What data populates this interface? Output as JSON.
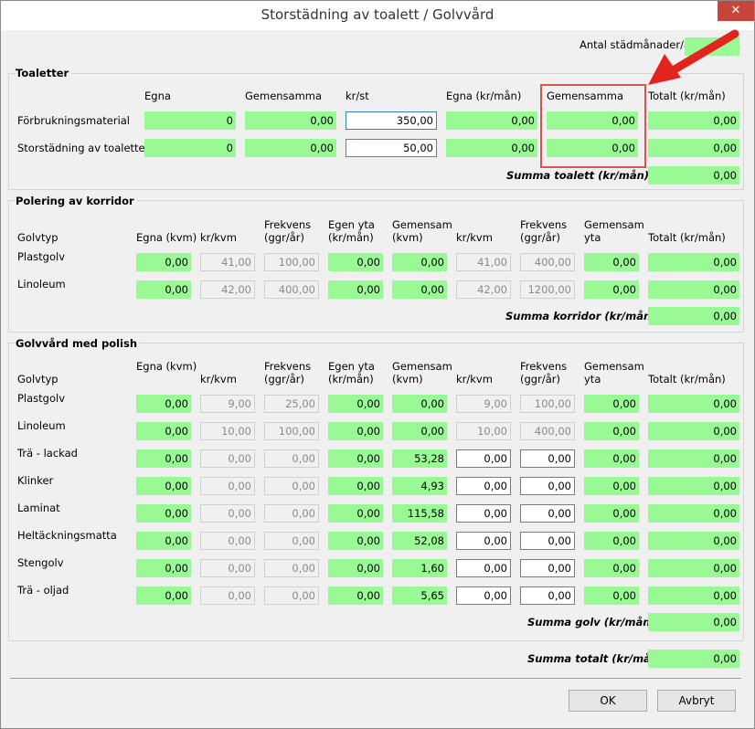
{
  "window": {
    "title": "Storstädning av toalett / Golvvård",
    "close_glyph": "✕"
  },
  "months": {
    "label": "Antal städmånader/år",
    "value": ""
  },
  "toaletter": {
    "title": "Toaletter",
    "headers": [
      "Egna",
      "Gemensamma",
      "kr/st",
      "Egna (kr/mån)",
      "Gemensamma",
      "Totalt (kr/mån)"
    ],
    "rows": [
      {
        "label": "Förbrukningsmaterial",
        "egna": "0",
        "gemensamma": "0,00",
        "krst": "350,00",
        "egna_krman": "0,00",
        "gem_krman": "0,00",
        "totalt": "0,00"
      },
      {
        "label": "Storstädning av toaletter",
        "egna": "0",
        "gemensamma": "0,00",
        "krst": "50,00",
        "egna_krman": "0,00",
        "gem_krman": "0,00",
        "totalt": "0,00"
      }
    ],
    "sum_label": "Summa toalett (kr/mån)",
    "sum_value": "0,00"
  },
  "korridor": {
    "title": "Polering av korridor",
    "headers": {
      "golvtyp": "Golvtyp",
      "egna": "Egna (kvm)",
      "krkvm1": "kr/kvm",
      "frek1": [
        "Frekvens",
        "(ggr/år)"
      ],
      "egenyta": [
        "Egen yta",
        "(kr/mån)"
      ],
      "gemsam": [
        "Gemensam",
        "(kvm)"
      ],
      "krkvm2": "kr/kvm",
      "frek2": [
        "Frekvens",
        "(ggr/år)"
      ],
      "gemyta": [
        "Gemensam",
        "yta"
      ],
      "totalt": "Totalt (kr/mån)"
    },
    "rows": [
      {
        "label": "Plastgolv",
        "v": [
          "0,00",
          "41,00",
          "100,00",
          "0,00",
          "0,00",
          "41,00",
          "400,00",
          "0,00",
          "0,00"
        ]
      },
      {
        "label": "Linoleum",
        "v": [
          "0,00",
          "42,00",
          "400,00",
          "0,00",
          "0,00",
          "42,00",
          "1200,00",
          "0,00",
          "0,00"
        ]
      }
    ],
    "sum_label": "Summa korridor (kr/mån)",
    "sum_value": "0,00"
  },
  "polish": {
    "title": "Golvvård med polish",
    "headers": {
      "golvtyp": "Golvtyp",
      "egna": "Egna (kvm)",
      "krkvm1": "kr/kvm",
      "frek1": [
        "Frekvens",
        "(ggr/år)"
      ],
      "egenyta": [
        "Egen yta",
        "(kr/mån)"
      ],
      "gemsam": [
        "Gemensam",
        "(kvm)"
      ],
      "krkvm2": "kr/kvm",
      "frek2": [
        "Frekvens",
        "(ggr/år)"
      ],
      "gemyta": [
        "Gemensam",
        "yta"
      ],
      "totalt": "Totalt (kr/mån)"
    },
    "rows": [
      {
        "label": "Plastgolv",
        "v": [
          "0,00",
          "9,00",
          "25,00",
          "0,00",
          "0,00",
          "9,00",
          "100,00",
          "0,00",
          "0,00"
        ]
      },
      {
        "label": "Linoleum",
        "v": [
          "0,00",
          "10,00",
          "100,00",
          "0,00",
          "0,00",
          "10,00",
          "400,00",
          "0,00",
          "0,00"
        ]
      },
      {
        "label": "Trä - lackad",
        "v": [
          "0,00",
          "0,00",
          "0,00",
          "0,00",
          "53,28",
          "0,00",
          "0,00",
          "0,00",
          "0,00"
        ]
      },
      {
        "label": "Klinker",
        "v": [
          "0,00",
          "0,00",
          "0,00",
          "0,00",
          "4,93",
          "0,00",
          "0,00",
          "0,00",
          "0,00"
        ]
      },
      {
        "label": "Laminat",
        "v": [
          "0,00",
          "0,00",
          "0,00",
          "0,00",
          "115,58",
          "0,00",
          "0,00",
          "0,00",
          "0,00"
        ]
      },
      {
        "label": "Heltäckningsmatta",
        "v": [
          "0,00",
          "0,00",
          "0,00",
          "0,00",
          "52,08",
          "0,00",
          "0,00",
          "0,00",
          "0,00"
        ]
      },
      {
        "label": "Stengolv",
        "v": [
          "0,00",
          "0,00",
          "0,00",
          "0,00",
          "1,60",
          "0,00",
          "0,00",
          "0,00",
          "0,00"
        ]
      },
      {
        "label": "Trä - oljad",
        "v": [
          "0,00",
          "0,00",
          "0,00",
          "0,00",
          "5,65",
          "0,00",
          "0,00",
          "0,00",
          "0,00"
        ]
      }
    ],
    "sum_label": "Summa golv (kr/mån)",
    "sum_value": "0,00"
  },
  "total": {
    "label": "Summa totalt (kr/mån)",
    "value": "0,00"
  },
  "buttons": {
    "ok": "OK",
    "cancel": "Avbryt"
  },
  "colors": {
    "computed_field": "#99f994",
    "highlight": "#d9534f",
    "arrow": "#e3231e"
  }
}
